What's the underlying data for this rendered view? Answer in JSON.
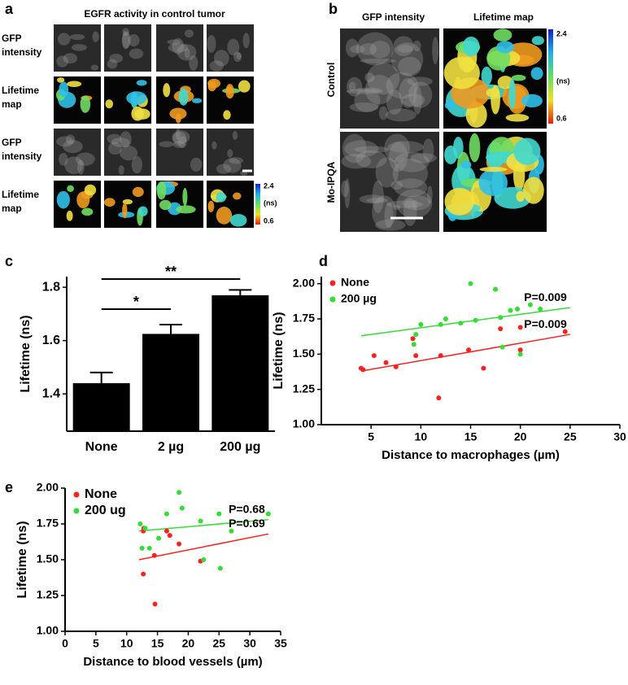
{
  "panel_labels": [
    "a",
    "b",
    "c",
    "d",
    "e"
  ],
  "panel_a": {
    "title": "EGFR activity in control tumor",
    "rows": [
      [
        "GFP",
        "intensity"
      ],
      [
        "Lifetime",
        "map"
      ],
      [
        "GFP",
        "intensity"
      ],
      [
        "Lifetime",
        "map"
      ]
    ],
    "colorbar": [
      "2.4",
      "(ns)",
      "0.6"
    ]
  },
  "panel_b": {
    "columns": [
      "GFP intensity",
      "Lifetime map"
    ],
    "rows": [
      "Control",
      "Mo-IPQA"
    ],
    "colorbar": [
      "2.4",
      "(ns)",
      "0.6"
    ]
  },
  "chart_data": [
    {
      "type": "bar",
      "categories": [
        "None",
        "2 µg",
        "200 µg"
      ],
      "values": [
        1.44,
        1.625,
        1.77
      ],
      "errors": [
        0.04,
        0.035,
        0.02
      ],
      "color": "#000000",
      "ylabel": "Lifetime (ns)",
      "ylim": [
        1.26,
        1.84
      ],
      "yticks": [
        1.4,
        1.6,
        1.8
      ],
      "annotations": [
        "*",
        "**"
      ]
    },
    {
      "type": "scatter",
      "xlabel": "Distance to macrophages (µm)",
      "ylabel": "Lifetime (ns)",
      "xlim": [
        0,
        30
      ],
      "xticks": [
        5,
        10,
        15,
        20,
        25,
        30
      ],
      "ylim": [
        1.0,
        2.05
      ],
      "yticks": [
        {
          "value": 1.0,
          "label": "1.00"
        },
        {
          "value": 1.25,
          "label": "1.25"
        },
        {
          "value": 1.5,
          "label": "1.50"
        },
        {
          "value": 1.75,
          "label": "1.75"
        },
        {
          "value": 2.0,
          "label": "2.00"
        }
      ],
      "series": [
        {
          "name": "None",
          "color": "#ff2020",
          "x": [
            4,
            4.2,
            5.3,
            6.5,
            7.5,
            9.2,
            9.5,
            11.8,
            12,
            14.8,
            16.3,
            18,
            20,
            20,
            24.5
          ],
          "values": [
            1.4,
            1.39,
            1.49,
            1.44,
            1.41,
            1.61,
            1.49,
            1.19,
            1.49,
            1.53,
            1.4,
            1.68,
            1.69,
            1.53,
            1.66
          ]
        },
        {
          "name": "200 µg",
          "color": "#33dd33",
          "x": [
            9.3,
            9.5,
            10,
            12,
            12.5,
            14,
            15,
            15.5,
            17.5,
            18,
            18.2,
            19,
            19.7,
            20,
            21,
            22
          ],
          "values": [
            1.57,
            1.64,
            1.71,
            1.71,
            1.75,
            1.72,
            2.0,
            1.74,
            1.96,
            1.76,
            1.55,
            1.81,
            1.82,
            1.5,
            1.85,
            1.82
          ]
        }
      ],
      "fits": [
        {
          "color": "#ff2020",
          "x": [
            4,
            25
          ],
          "values": [
            1.38,
            1.64
          ]
        },
        {
          "color": "#33dd33",
          "x": [
            4,
            25
          ],
          "values": [
            1.63,
            1.83
          ]
        }
      ],
      "annotations": [
        "P=0.009",
        "P=0.009"
      ]
    },
    {
      "type": "scatter",
      "xlabel": "Distance to blood vessels (µm)",
      "ylabel": "Lifetime (ns)",
      "xlim": [
        0,
        35
      ],
      "xticks": [
        0,
        5,
        10,
        15,
        20,
        25,
        30,
        35
      ],
      "ylim": [
        1.0,
        2.0
      ],
      "yticks": [
        {
          "value": 1.0,
          "label": "1.00"
        },
        {
          "value": 1.25,
          "label": "1.25"
        },
        {
          "value": 1.5,
          "label": "1.50"
        },
        {
          "value": 1.75,
          "label": "1.75"
        },
        {
          "value": 2.0,
          "label": "2.00"
        }
      ],
      "series": [
        {
          "name": "None",
          "color": "#ff2020",
          "x": [
            12.7,
            12.8,
            12.7,
            14.5,
            14.6,
            16.5,
            17,
            18.5,
            22
          ],
          "values": [
            1.4,
            1.72,
            1.7,
            1.53,
            1.19,
            1.7,
            1.67,
            1.61,
            1.49
          ]
        },
        {
          "name": "200 ug",
          "color": "#33dd33",
          "x": [
            12.2,
            12.5,
            13,
            13.7,
            15.2,
            16.5,
            18.5,
            19,
            22,
            22.5,
            25,
            25.2,
            27,
            33
          ],
          "values": [
            1.75,
            1.58,
            1.72,
            1.58,
            1.65,
            1.82,
            1.97,
            1.86,
            1.77,
            1.5,
            1.82,
            1.44,
            1.7,
            1.82
          ]
        }
      ],
      "fits": [
        {
          "color": "#33dd33",
          "x": [
            12,
            33
          ],
          "values": [
            1.7,
            1.78
          ]
        },
        {
          "color": "#ff2020",
          "x": [
            12,
            33
          ],
          "values": [
            1.5,
            1.68
          ]
        }
      ],
      "annotations": [
        "P=0.68",
        "P=0.69"
      ]
    }
  ]
}
